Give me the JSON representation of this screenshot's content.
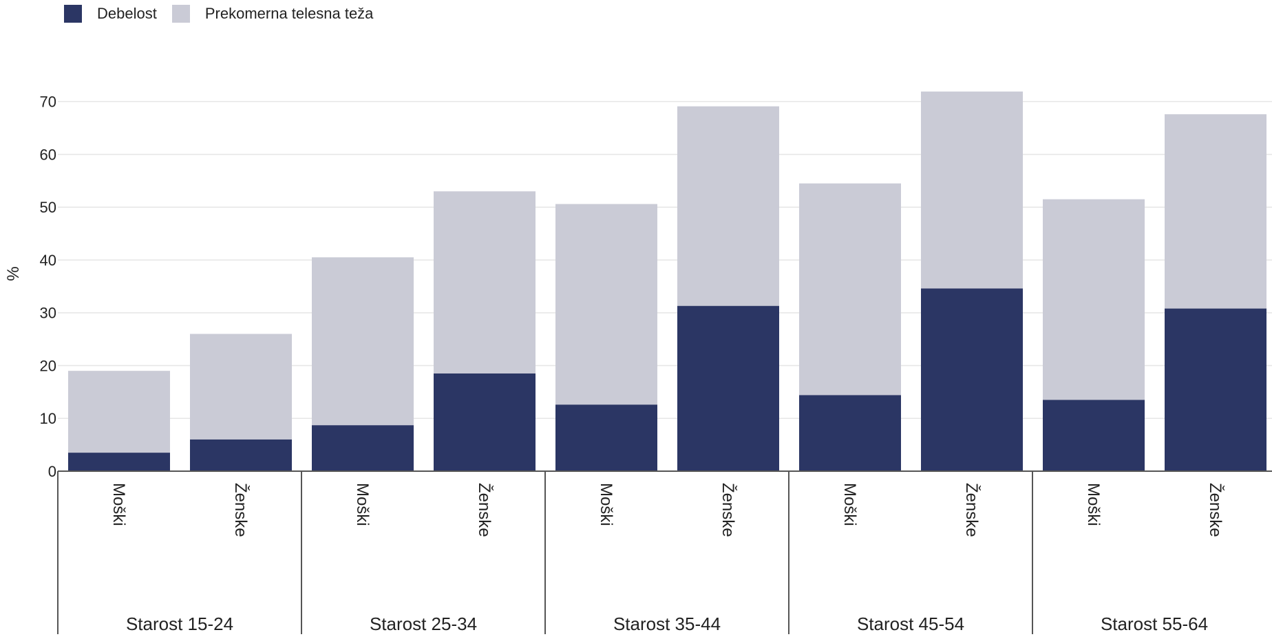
{
  "chart_data": {
    "type": "bar",
    "stacked": true,
    "ylabel": "%",
    "xlabel": "",
    "ylim": [
      0,
      70
    ],
    "yticks": [
      0,
      10,
      20,
      30,
      40,
      50,
      60,
      70
    ],
    "grid": true,
    "legend_position": "top-left",
    "groups": [
      "Starost 15-24",
      "Starost 25-34",
      "Starost 35-44",
      "Starost 45-54",
      "Starost 55-64"
    ],
    "categories": [
      "Moški",
      "Ženske"
    ],
    "series": [
      {
        "name": "Debelost",
        "color": "#2b3664",
        "values": [
          [
            3.5,
            6.0
          ],
          [
            8.7,
            18.5
          ],
          [
            12.6,
            31.3
          ],
          [
            14.4,
            34.6
          ],
          [
            13.5,
            30.8
          ]
        ]
      },
      {
        "name": "Prekomerna telesna teža",
        "color": "#cacbd6",
        "values": [
          [
            15.5,
            20.0
          ],
          [
            31.8,
            34.5
          ],
          [
            38.0,
            37.8
          ],
          [
            40.1,
            37.3
          ],
          [
            38.0,
            36.8
          ]
        ]
      }
    ]
  }
}
